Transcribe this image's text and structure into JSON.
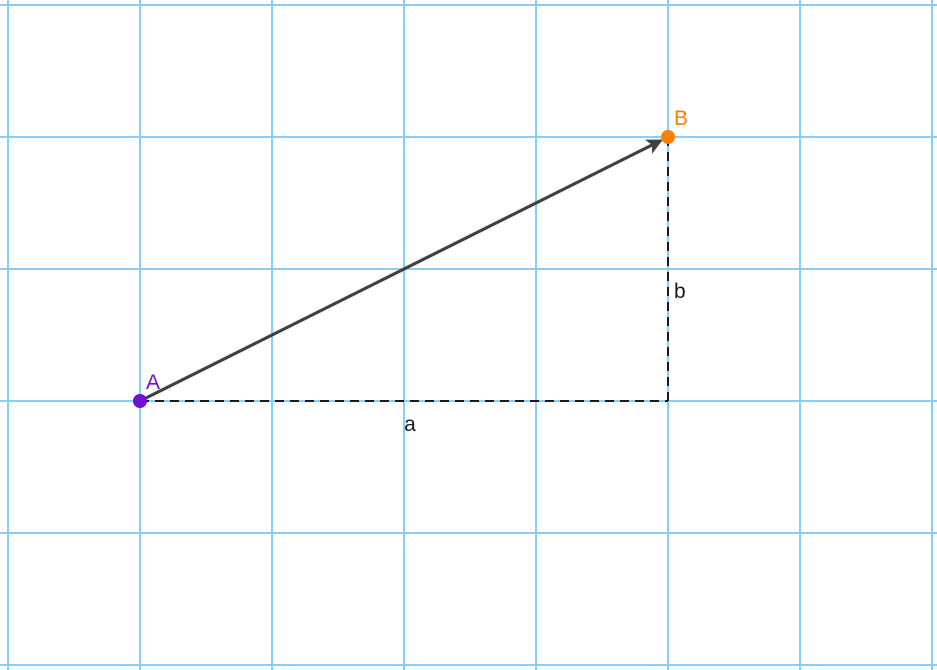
{
  "diagram": {
    "colors": {
      "grid": "#87CEFA",
      "vector": "#404040",
      "dashed": "#1a1a1a",
      "point_a": "#7010D0",
      "point_b": "#FF8000",
      "text": "#1a1a1a"
    },
    "points": {
      "A": {
        "label": "A",
        "x": 1,
        "y": 2
      },
      "B": {
        "label": "B",
        "x": 5,
        "y": 4
      }
    },
    "vector": {
      "from": "A",
      "to": "B"
    },
    "components": {
      "horizontal": {
        "label": "a"
      },
      "vertical": {
        "label": "b"
      }
    },
    "grid": {
      "x_range": [
        0,
        7
      ],
      "y_range": [
        0,
        5
      ],
      "step": 1
    }
  }
}
